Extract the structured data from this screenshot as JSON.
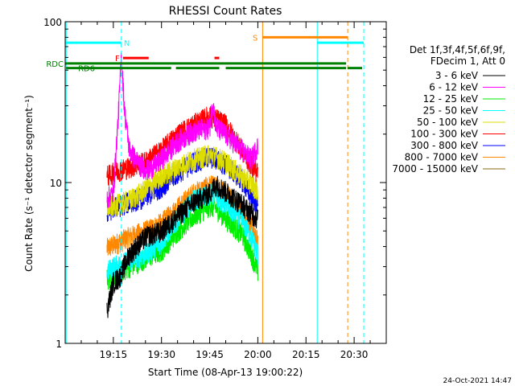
{
  "chart_data": {
    "type": "line",
    "title": "RHESSI Count Rates",
    "xlabel": "Start Time (08-Apr-13 19:00:22)",
    "ylabel": "Count Rate (s⁻¹ detector segment⁻¹)",
    "y_scale": "log",
    "ylim": [
      1,
      100
    ],
    "xlim_minutes": [
      0,
      100
    ],
    "y_ticks": [
      {
        "v": 1,
        "label": "1"
      },
      {
        "v": 10,
        "label": "10"
      },
      {
        "v": 100,
        "label": "100"
      }
    ],
    "x_ticks": [
      {
        "t": 15,
        "label": "19:15"
      },
      {
        "t": 30,
        "label": "19:30"
      },
      {
        "t": 45,
        "label": "19:45"
      },
      {
        "t": 60,
        "label": "20:00"
      },
      {
        "t": 75,
        "label": "20:15"
      },
      {
        "t": 90,
        "label": "20:30"
      }
    ],
    "legend_header": [
      "Det 1f,3f,4f,5f,6f,9f,",
      "FDecim 1, Att 0"
    ],
    "series": [
      {
        "name": "3 - 6 keV",
        "color": "#000000",
        "values": [
          [
            13,
            1.6
          ],
          [
            15,
            2.4
          ],
          [
            17,
            2.6
          ],
          [
            20,
            3.6
          ],
          [
            25,
            4.6
          ],
          [
            30,
            5.0
          ],
          [
            35,
            6.2
          ],
          [
            40,
            7.6
          ],
          [
            45,
            8.6
          ],
          [
            47,
            9.8
          ],
          [
            50,
            8.8
          ],
          [
            55,
            7.4
          ],
          [
            58,
            6.4
          ],
          [
            60,
            6.0
          ]
        ]
      },
      {
        "name": "6 - 12 keV",
        "color": "#ff00ff",
        "values": [
          [
            13,
            8.0
          ],
          [
            15,
            8.6
          ],
          [
            16.5,
            25
          ],
          [
            17.5,
            62
          ],
          [
            18.5,
            28
          ],
          [
            20,
            16
          ],
          [
            23,
            13
          ],
          [
            26,
            12
          ],
          [
            30,
            14
          ],
          [
            35,
            18
          ],
          [
            40,
            21
          ],
          [
            45,
            22
          ],
          [
            46,
            32
          ],
          [
            47,
            22
          ],
          [
            50,
            20
          ],
          [
            55,
            16
          ],
          [
            58,
            14
          ],
          [
            60,
            17
          ]
        ]
      },
      {
        "name": "12 - 25 keV",
        "color": "#00ee00",
        "values": [
          [
            13,
            2.5
          ],
          [
            15,
            2.7
          ],
          [
            17,
            2.8
          ],
          [
            20,
            3.0
          ],
          [
            25,
            3.4
          ],
          [
            30,
            3.8
          ],
          [
            35,
            5.0
          ],
          [
            40,
            6.2
          ],
          [
            45,
            7.2
          ],
          [
            47,
            7.0
          ],
          [
            50,
            6.0
          ],
          [
            55,
            4.8
          ],
          [
            58,
            3.6
          ],
          [
            60,
            2.8
          ]
        ]
      },
      {
        "name": "25 - 50 keV",
        "color": "#00ffff",
        "values": [
          [
            13,
            2.8
          ],
          [
            15,
            3.0
          ],
          [
            17,
            3.1
          ],
          [
            20,
            3.3
          ],
          [
            25,
            3.6
          ],
          [
            30,
            4.3
          ],
          [
            35,
            6.0
          ],
          [
            40,
            7.8
          ],
          [
            45,
            8.6
          ],
          [
            47,
            8.3
          ],
          [
            50,
            7.3
          ],
          [
            55,
            5.8
          ],
          [
            58,
            4.6
          ],
          [
            60,
            3.6
          ]
        ]
      },
      {
        "name": "50 - 100 keV",
        "color": "#dddd00",
        "values": [
          [
            13,
            7.0
          ],
          [
            15,
            7.2
          ],
          [
            17,
            7.4
          ],
          [
            20,
            7.8
          ],
          [
            25,
            9.0
          ],
          [
            30,
            11
          ],
          [
            35,
            12.5
          ],
          [
            40,
            14
          ],
          [
            45,
            15
          ],
          [
            47,
            14.5
          ],
          [
            50,
            13.5
          ],
          [
            55,
            11
          ],
          [
            58,
            9.8
          ],
          [
            60,
            9.0
          ]
        ]
      },
      {
        "name": "100 - 300 keV",
        "color": "#ff0000",
        "values": [
          [
            13,
            11
          ],
          [
            15,
            11.5
          ],
          [
            17,
            12
          ],
          [
            20,
            12.5
          ],
          [
            25,
            13.5
          ],
          [
            30,
            16
          ],
          [
            35,
            20
          ],
          [
            40,
            23
          ],
          [
            45,
            26
          ],
          [
            47,
            25
          ],
          [
            50,
            23
          ],
          [
            55,
            16
          ],
          [
            58,
            13
          ],
          [
            60,
            11.5
          ]
        ]
      },
      {
        "name": "300 - 800 keV",
        "color": "#0000ff",
        "values": [
          [
            13,
            6.5
          ],
          [
            15,
            7.0
          ],
          [
            17,
            7.2
          ],
          [
            20,
            7.6
          ],
          [
            25,
            8.2
          ],
          [
            30,
            9.5
          ],
          [
            35,
            11.5
          ],
          [
            40,
            13.5
          ],
          [
            45,
            14.5
          ],
          [
            47,
            14.0
          ],
          [
            50,
            13.0
          ],
          [
            55,
            10.5
          ],
          [
            58,
            8.2
          ],
          [
            60,
            7.0
          ]
        ]
      },
      {
        "name": "800 - 7000 keV",
        "color": "#ff8800",
        "values": [
          [
            13,
            3.9
          ],
          [
            15,
            4.1
          ],
          [
            17,
            4.3
          ],
          [
            20,
            4.6
          ],
          [
            25,
            5.0
          ],
          [
            30,
            5.6
          ],
          [
            35,
            7.0
          ],
          [
            40,
            8.6
          ],
          [
            45,
            9.6
          ],
          [
            47,
            9.4
          ],
          [
            50,
            8.6
          ],
          [
            55,
            6.8
          ],
          [
            58,
            5.4
          ],
          [
            60,
            4.3
          ]
        ]
      },
      {
        "name": "7000 - 15000 keV",
        "color": "#8b6914",
        "values": []
      }
    ],
    "flags": {
      "rdc": {
        "label": "RDC",
        "color": "#008000",
        "segments": [
          [
            0,
            0.6,
            87.5,
            66
          ]
        ]
      },
      "rd6": {
        "label": "RD6",
        "color": "#008000",
        "segments": [
          [
            0.3,
            3,
            20,
            33
          ],
          [
            34.5,
            48
          ],
          [
            50,
            87.5
          ],
          [
            88,
            92.5
          ]
        ]
      },
      "f": {
        "label": "F",
        "color": "#ff0000",
        "segments": [
          [
            18,
            26
          ],
          [
            46.5,
            48
          ]
        ]
      },
      "n": {
        "label": "N",
        "color": "#00ffff",
        "segments": [
          [
            0,
            17.5
          ],
          [
            78.5,
            93
          ]
        ]
      },
      "s": {
        "label": "S",
        "color": "#ff8800",
        "segments": [
          [
            61.5,
            88
          ]
        ]
      }
    },
    "vlines": [
      {
        "t": 0.3,
        "color": "#00ffff",
        "style": "solid"
      },
      {
        "t": 17.5,
        "color": "#00ffff",
        "style": "dashed"
      },
      {
        "t": 61.5,
        "color": "#ff8800",
        "style": "solid"
      },
      {
        "t": 78.5,
        "color": "#00ffff",
        "style": "solid"
      },
      {
        "t": 88,
        "color": "#ff8800",
        "style": "dashed"
      },
      {
        "t": 93,
        "color": "#00ffff",
        "style": "dashed"
      }
    ],
    "footer_date": "24-Oct-2021 14:47"
  }
}
